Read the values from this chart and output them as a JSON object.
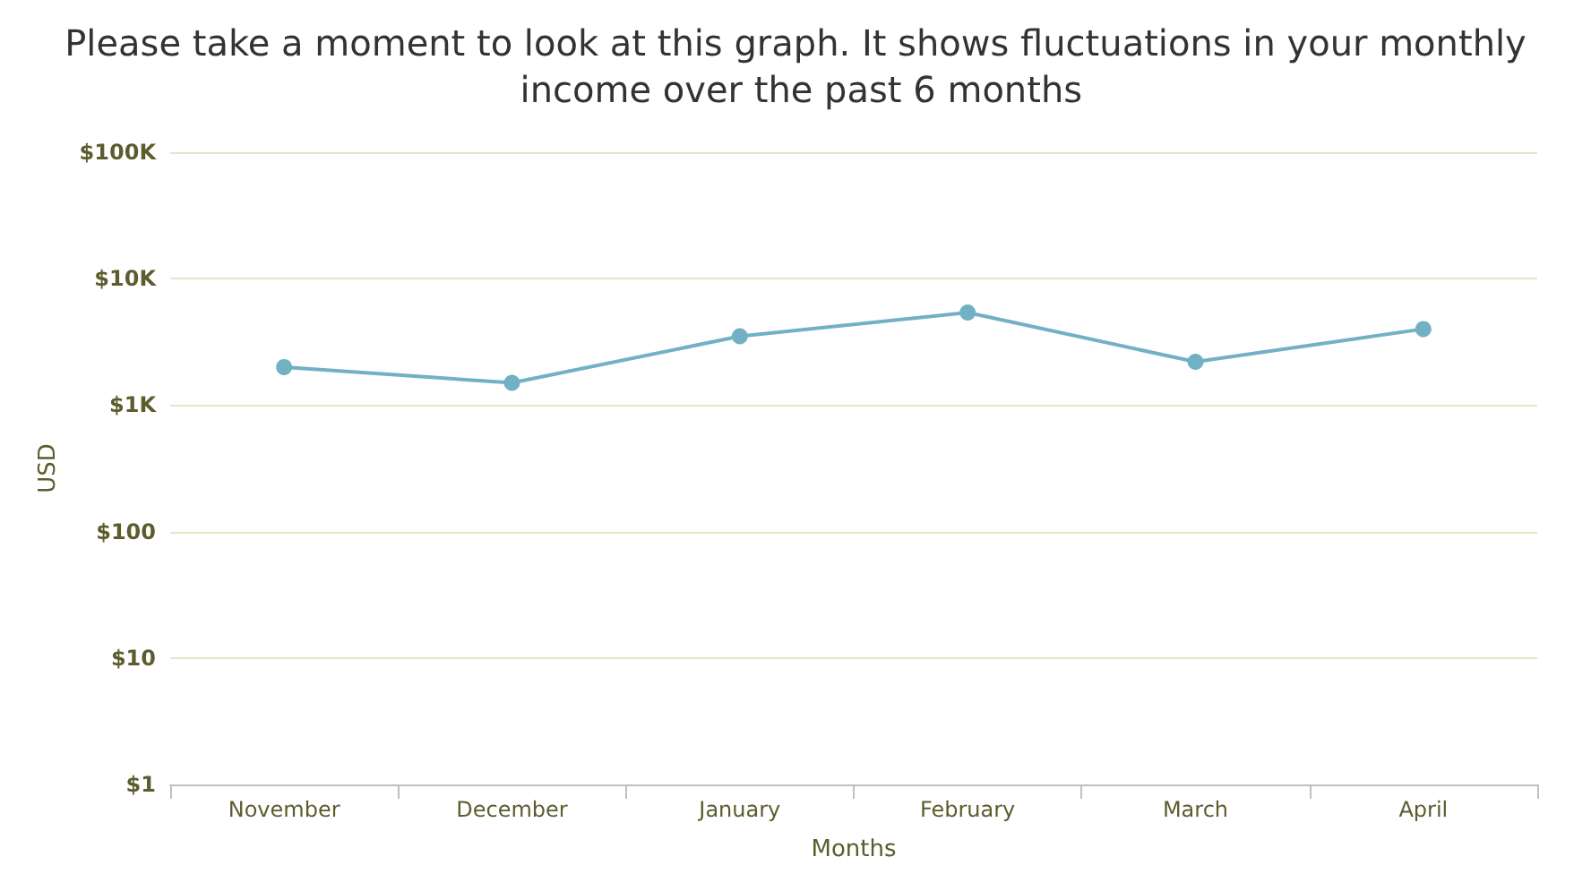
{
  "chart_data": {
    "type": "line",
    "title": "Please take a moment to look at this graph. It shows fluctuations in your monthly income over the past 6 months",
    "xlabel": "Months",
    "ylabel": "USD",
    "categories": [
      "November",
      "December",
      "January",
      "February",
      "March",
      "April"
    ],
    "series": [
      {
        "color": "#72b0c4",
        "values": [
          2000,
          1500,
          3500,
          5400,
          2200,
          4000
        ]
      }
    ],
    "log": "y",
    "ylim": [
      1,
      100000
    ],
    "yticks": [
      {
        "value": 1,
        "label": "$1"
      },
      {
        "value": 10,
        "label": "$10"
      },
      {
        "value": 100,
        "label": "$100"
      },
      {
        "value": 1000,
        "label": "$1K"
      },
      {
        "value": 10000,
        "label": "$10K"
      },
      {
        "value": 100000,
        "label": "$100K"
      }
    ],
    "grid": "y",
    "marker": "circle",
    "line_style": "solid"
  }
}
